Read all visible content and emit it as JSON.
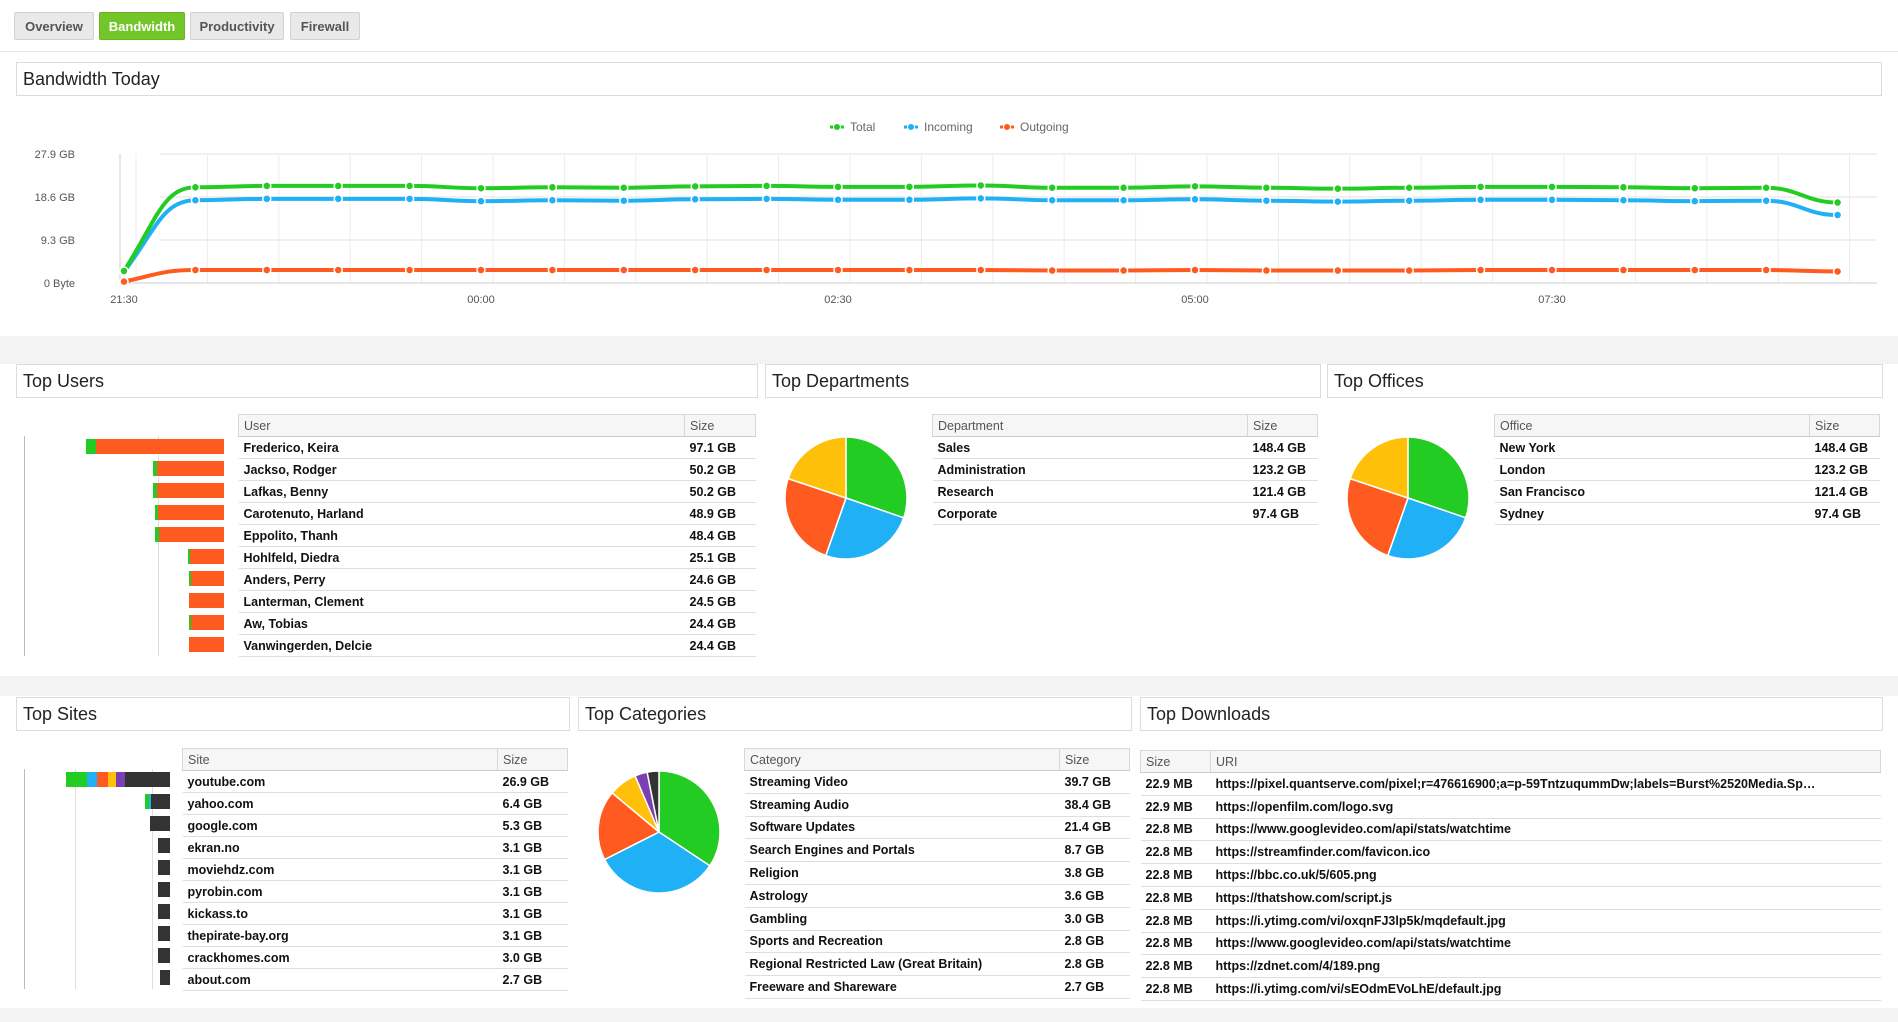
{
  "tabs": [
    {
      "label": "Overview"
    },
    {
      "label": "Bandwidth"
    },
    {
      "label": "Productivity"
    },
    {
      "label": "Firewall"
    }
  ],
  "colors": {
    "total": "#22cc22",
    "incoming": "#1fb0f5",
    "outgoing": "#ff5a1f",
    "yellow": "#ffc00a",
    "purple": "#7b3fb4",
    "dark": "#333333",
    "accent": "#73c529"
  },
  "bandwidth": {
    "title": "Bandwidth Today",
    "legend": [
      {
        "name": "Total",
        "color": "#22cc22"
      },
      {
        "name": "Incoming",
        "color": "#1fb0f5"
      },
      {
        "name": "Outgoing",
        "color": "#ff5a1f"
      }
    ]
  },
  "chart_data": {
    "type": "line",
    "yticks": [
      "0 Byte",
      "9.3 GB",
      "18.6 GB",
      "27.9 GB"
    ],
    "ylim": [
      0,
      27.9
    ],
    "xticks": [
      {
        "i": 0,
        "label": "21:30"
      },
      {
        "i": 5,
        "label": "00:00"
      },
      {
        "i": 10,
        "label": "02:30"
      },
      {
        "i": 15,
        "label": "05:00"
      },
      {
        "i": 20,
        "label": "07:30"
      }
    ],
    "x_count": 25,
    "series": [
      {
        "name": "Total",
        "color": "#22cc22",
        "values": [
          2.6,
          20.7,
          21.0,
          21.0,
          21.0,
          20.5,
          20.7,
          20.6,
          20.9,
          21.0,
          20.8,
          20.8,
          21.1,
          20.6,
          20.6,
          20.9,
          20.6,
          20.4,
          20.6,
          20.8,
          20.8,
          20.7,
          20.5,
          20.6,
          17.4
        ]
      },
      {
        "name": "Incoming",
        "color": "#1fb0f5",
        "values": [
          2.4,
          17.9,
          18.2,
          18.2,
          18.2,
          17.7,
          17.9,
          17.8,
          18.1,
          18.2,
          18.0,
          18.0,
          18.3,
          17.9,
          17.9,
          18.1,
          17.8,
          17.6,
          17.8,
          18.0,
          18.0,
          17.9,
          17.7,
          17.8,
          14.7
        ]
      },
      {
        "name": "Outgoing",
        "color": "#ff5a1f",
        "values": [
          0.3,
          2.8,
          2.8,
          2.8,
          2.8,
          2.8,
          2.8,
          2.8,
          2.8,
          2.8,
          2.8,
          2.8,
          2.8,
          2.7,
          2.7,
          2.8,
          2.7,
          2.7,
          2.7,
          2.8,
          2.8,
          2.8,
          2.8,
          2.8,
          2.5
        ]
      }
    ]
  },
  "top_users": {
    "title": "Top Users",
    "col_name": "User",
    "col_size": "Size",
    "rows": [
      {
        "name": "Frederico, Keira",
        "size": "97.1 GB",
        "value": 97.1,
        "segs": [
          [
            "#22cc22",
            0.07
          ],
          [
            "#ff5a1f",
            0.93
          ]
        ]
      },
      {
        "name": "Jackso, Rodger",
        "size": "50.2 GB",
        "value": 50.2,
        "segs": [
          [
            "#22cc22",
            0.06
          ],
          [
            "#ff5a1f",
            0.94
          ]
        ]
      },
      {
        "name": "Lafkas, Benny",
        "size": "50.2 GB",
        "value": 50.2,
        "segs": [
          [
            "#22cc22",
            0.06
          ],
          [
            "#ff5a1f",
            0.94
          ]
        ]
      },
      {
        "name": "Carotenuto, Harland",
        "size": "48.9 GB",
        "value": 48.9,
        "segs": [
          [
            "#22cc22",
            0.05
          ],
          [
            "#ff5a1f",
            0.95
          ]
        ]
      },
      {
        "name": "Eppolito, Thanh",
        "size": "48.4 GB",
        "value": 48.4,
        "segs": [
          [
            "#22cc22",
            0.05
          ],
          [
            "#ff5a1f",
            0.95
          ]
        ]
      },
      {
        "name": "Hohlfeld, Diedra",
        "size": "25.1 GB",
        "value": 25.1,
        "segs": [
          [
            "#22cc22",
            0.05
          ],
          [
            "#ff5a1f",
            0.95
          ]
        ]
      },
      {
        "name": "Anders, Perry",
        "size": "24.6 GB",
        "value": 24.6,
        "segs": [
          [
            "#22cc22",
            0.05
          ],
          [
            "#ff5a1f",
            0.95
          ]
        ]
      },
      {
        "name": "Lanterman, Clement",
        "size": "24.5 GB",
        "value": 24.5,
        "segs": [
          [
            "#ff5a1f",
            1.0
          ]
        ]
      },
      {
        "name": "Aw, Tobias",
        "size": "24.4 GB",
        "value": 24.4,
        "segs": [
          [
            "#22cc22",
            0.04
          ],
          [
            "#ff5a1f",
            0.96
          ]
        ]
      },
      {
        "name": "Vanwingerden, Delcie",
        "size": "24.4 GB",
        "value": 24.4,
        "segs": [
          [
            "#ff5a1f",
            1.0
          ]
        ]
      }
    ]
  },
  "top_departments": {
    "title": "Top Departments",
    "col_name": "Department",
    "col_size": "Size",
    "rows": [
      {
        "name": "Sales",
        "size": "148.4 GB",
        "value": 148.4
      },
      {
        "name": "Administration",
        "size": "123.2 GB",
        "value": 123.2
      },
      {
        "name": "Research",
        "size": "121.4 GB",
        "value": 121.4
      },
      {
        "name": "Corporate",
        "size": "97.4 GB",
        "value": 97.4
      }
    ],
    "pie_colors": [
      "#22cc22",
      "#1fb0f5",
      "#ff5a1f",
      "#ffc00a"
    ]
  },
  "top_offices": {
    "title": "Top Offices",
    "col_name": "Office",
    "col_size": "Size",
    "rows": [
      {
        "name": "New York",
        "size": "148.4 GB",
        "value": 148.4
      },
      {
        "name": "London",
        "size": "123.2 GB",
        "value": 123.2
      },
      {
        "name": "San Francisco",
        "size": "121.4 GB",
        "value": 121.4
      },
      {
        "name": "Sydney",
        "size": "97.4 GB",
        "value": 97.4
      }
    ],
    "pie_colors": [
      "#22cc22",
      "#1fb0f5",
      "#ff5a1f",
      "#ffc00a"
    ]
  },
  "top_sites": {
    "title": "Top Sites",
    "col_name": "Site",
    "col_size": "Size",
    "rows": [
      {
        "name": "youtube.com",
        "size": "26.9 GB",
        "value": 26.9,
        "segs": [
          [
            "#22cc22",
            0.2
          ],
          [
            "#1fb0f5",
            0.1
          ],
          [
            "#ff5a1f",
            0.1
          ],
          [
            "#ffc00a",
            0.08
          ],
          [
            "#7b3fb4",
            0.09
          ],
          [
            "#333333",
            0.43
          ]
        ]
      },
      {
        "name": "yahoo.com",
        "size": "6.4 GB",
        "value": 6.4,
        "segs": [
          [
            "#22cc22",
            0.15
          ],
          [
            "#1fb0f5",
            0.1
          ],
          [
            "#333333",
            0.75
          ]
        ]
      },
      {
        "name": "google.com",
        "size": "5.3 GB",
        "value": 5.3,
        "segs": [
          [
            "#333333",
            1.0
          ]
        ]
      },
      {
        "name": "ekran.no",
        "size": "3.1 GB",
        "value": 3.1,
        "segs": [
          [
            "#333333",
            1.0
          ]
        ]
      },
      {
        "name": "moviehdz.com",
        "size": "3.1 GB",
        "value": 3.1,
        "segs": [
          [
            "#333333",
            1.0
          ]
        ]
      },
      {
        "name": "pyrobin.com",
        "size": "3.1 GB",
        "value": 3.1,
        "segs": [
          [
            "#333333",
            1.0
          ]
        ]
      },
      {
        "name": "kickass.to",
        "size": "3.1 GB",
        "value": 3.1,
        "segs": [
          [
            "#333333",
            1.0
          ]
        ]
      },
      {
        "name": "thepirate-bay.org",
        "size": "3.1 GB",
        "value": 3.1,
        "segs": [
          [
            "#333333",
            1.0
          ]
        ]
      },
      {
        "name": "crackhomes.com",
        "size": "3.0 GB",
        "value": 3.0,
        "segs": [
          [
            "#333333",
            1.0
          ]
        ]
      },
      {
        "name": "about.com",
        "size": "2.7 GB",
        "value": 2.7,
        "segs": [
          [
            "#333333",
            1.0
          ]
        ]
      }
    ]
  },
  "top_categories": {
    "title": "Top Categories",
    "col_name": "Category",
    "col_size": "Size",
    "rows": [
      {
        "name": "Streaming Video",
        "size": "39.7 GB",
        "value": 39.7
      },
      {
        "name": "Streaming Audio",
        "size": "38.4 GB",
        "value": 38.4
      },
      {
        "name": "Software Updates",
        "size": "21.4 GB",
        "value": 21.4
      },
      {
        "name": "Search Engines and Portals",
        "size": "8.7 GB",
        "value": 8.7
      },
      {
        "name": "Religion",
        "size": "3.8 GB",
        "value": 3.8
      },
      {
        "name": "Astrology",
        "size": "3.6 GB",
        "value": 3.6
      },
      {
        "name": "Gambling",
        "size": "3.0 GB",
        "value": 3.0
      },
      {
        "name": "Sports and Recreation",
        "size": "2.8 GB",
        "value": 2.8
      },
      {
        "name": "Regional Restricted Law (Great Britain)",
        "size": "2.8 GB",
        "value": 2.8
      },
      {
        "name": "Freeware and Shareware",
        "size": "2.7 GB",
        "value": 2.7
      }
    ],
    "pie_values": [
      39.7,
      38.4,
      21.4,
      8.7,
      3.8,
      3.6
    ],
    "pie_colors": [
      "#22cc22",
      "#1fb0f5",
      "#ff5a1f",
      "#ffc00a",
      "#7b3fb4",
      "#333333"
    ]
  },
  "top_downloads": {
    "title": "Top Downloads",
    "col_size": "Size",
    "col_uri": "URI",
    "rows": [
      {
        "size": "22.9 MB",
        "uri": "https://pixel.quantserve.com/pixel;r=476616900;a=p-59TntzuqummDw;labels=Burst%2520Media.Sp…"
      },
      {
        "size": "22.9 MB",
        "uri": "https://openfilm.com/logo.svg"
      },
      {
        "size": "22.8 MB",
        "uri": "https://www.googlevideo.com/api/stats/watchtime"
      },
      {
        "size": "22.8 MB",
        "uri": "https://streamfinder.com/favicon.ico"
      },
      {
        "size": "22.8 MB",
        "uri": "https://bbc.co.uk/5/605.png"
      },
      {
        "size": "22.8 MB",
        "uri": "https://thatshow.com/script.js"
      },
      {
        "size": "22.8 MB",
        "uri": "https://i.ytimg.com/vi/oxqnFJ3lp5k/mqdefault.jpg"
      },
      {
        "size": "22.8 MB",
        "uri": "https://www.googlevideo.com/api/stats/watchtime"
      },
      {
        "size": "22.8 MB",
        "uri": "https://zdnet.com/4/189.png"
      },
      {
        "size": "22.8 MB",
        "uri": "https://i.ytimg.com/vi/sEOdmEVoLhE/default.jpg"
      }
    ]
  }
}
